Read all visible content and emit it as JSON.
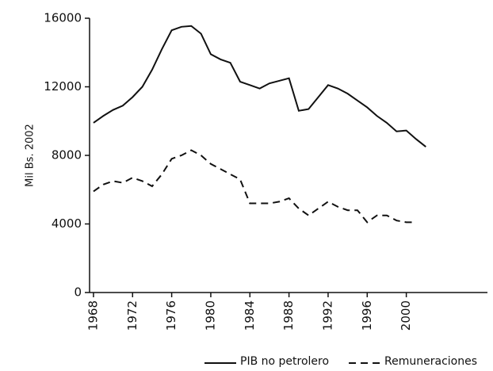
{
  "chart_data": {
    "type": "line",
    "y_label": "Mil Bs. 2002",
    "x": [
      1968,
      1969,
      1970,
      1971,
      1972,
      1973,
      1974,
      1975,
      1976,
      1977,
      1978,
      1979,
      1980,
      1981,
      1982,
      1983,
      1984,
      1985,
      1986,
      1987,
      1988,
      1989,
      1990,
      1991,
      1992,
      1993,
      1994,
      1995,
      1996,
      1997,
      1998,
      1999,
      2000,
      2001,
      2002
    ],
    "series": [
      {
        "name": "PIB no petrolero",
        "color": "#111111",
        "dash": "solid",
        "values": [
          9900,
          10300,
          10650,
          10900,
          11400,
          12000,
          13000,
          14200,
          15300,
          15500,
          15550,
          15100,
          13900,
          13600,
          13400,
          12300,
          12100,
          11900,
          12200,
          12350,
          12500,
          10600,
          10700,
          11400,
          12100,
          11900,
          11600,
          11200,
          10800,
          10300,
          9900,
          9400,
          9450,
          8950,
          8500
        ]
      },
      {
        "name": "Remuneraciones",
        "color": "#111111",
        "dash": "dashed",
        "values": [
          5900,
          6300,
          6500,
          6400,
          6700,
          6500,
          6200,
          6900,
          7800,
          8000,
          8300,
          8000,
          7500,
          7200,
          6900,
          6600,
          5200,
          5200,
          5200,
          5300,
          5500,
          4900,
          4500,
          4900,
          5300,
          5000,
          4800,
          4800,
          4100,
          4500,
          4500,
          4200,
          4100,
          4100,
          null
        ]
      }
    ],
    "xlim": [
      1967.6,
      2008.3
    ],
    "xticks": [
      1968,
      1972,
      1976,
      1980,
      1984,
      1988,
      1992,
      1996,
      2000
    ],
    "ylim": [
      0,
      16000
    ],
    "yticks": [
      0,
      4000,
      8000,
      12000,
      16000
    ],
    "legend": "bottom-right",
    "grid": false
  }
}
